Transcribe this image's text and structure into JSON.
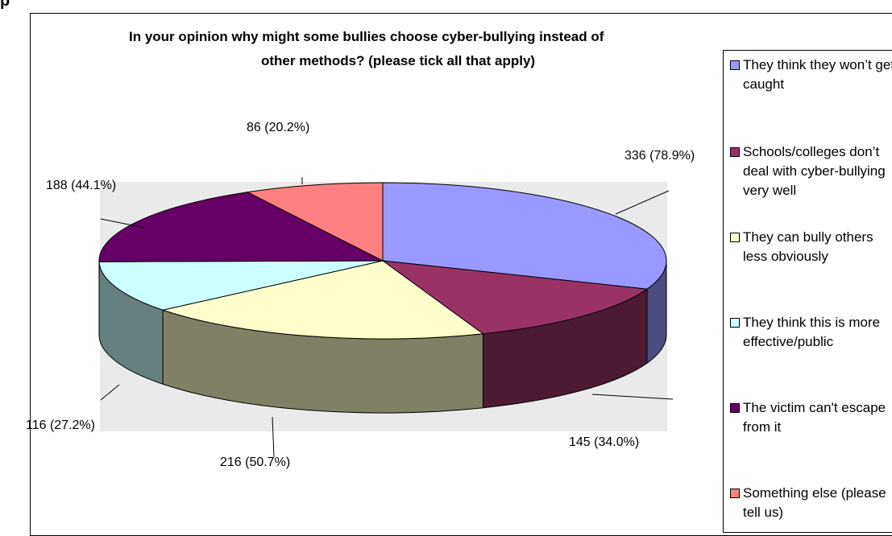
{
  "chart_data": {
    "type": "pie",
    "title_line1": "In your opinion why might some bullies choose cyber-bullying instead of",
    "title_line2": "other methods? (please tick all that apply)",
    "legend_position": "right",
    "slices": [
      {
        "name": "They think they won’t get caught",
        "value": 336,
        "label": "336 (78.9%)",
        "color": "#9999ff",
        "side_color": "#4d4d80"
      },
      {
        "name": "Schools/colleges don’t deal with cyber-bullying very well",
        "value": 145,
        "label": "145 (34.0%)",
        "color": "#993366",
        "side_color": "#4d1a33"
      },
      {
        "name": "They can bully others less obviously",
        "value": 216,
        "label": "216 (50.7%)",
        "color": "#ffffcc",
        "side_color": "#808066"
      },
      {
        "name": "They think this is more effective/public",
        "value": 116,
        "label": "116 (27.2%)",
        "color": "#ccffff",
        "side_color": "#668080"
      },
      {
        "name": "The victim can't escape from it",
        "value": 188,
        "label": "188 (44.1%)",
        "color": "#660066",
        "side_color": "#330033"
      },
      {
        "name": "Something else (please tell us)",
        "value": 86,
        "label": "86 (20.2%)",
        "color": "#ff8080",
        "side_color": "#804040"
      }
    ]
  },
  "legend": {
    "items": [
      {
        "label": "They think they won’t get caught"
      },
      {
        "label": "Schools/colleges don’t deal with cyber-bullying very well"
      },
      {
        "label": "They can bully others less obviously"
      },
      {
        "label": "They think this is more effective/public"
      },
      {
        "label": "The victim can't escape from it"
      },
      {
        "label": "Something else (please tell us)"
      }
    ]
  },
  "plot_area_color": "#eaeaea"
}
